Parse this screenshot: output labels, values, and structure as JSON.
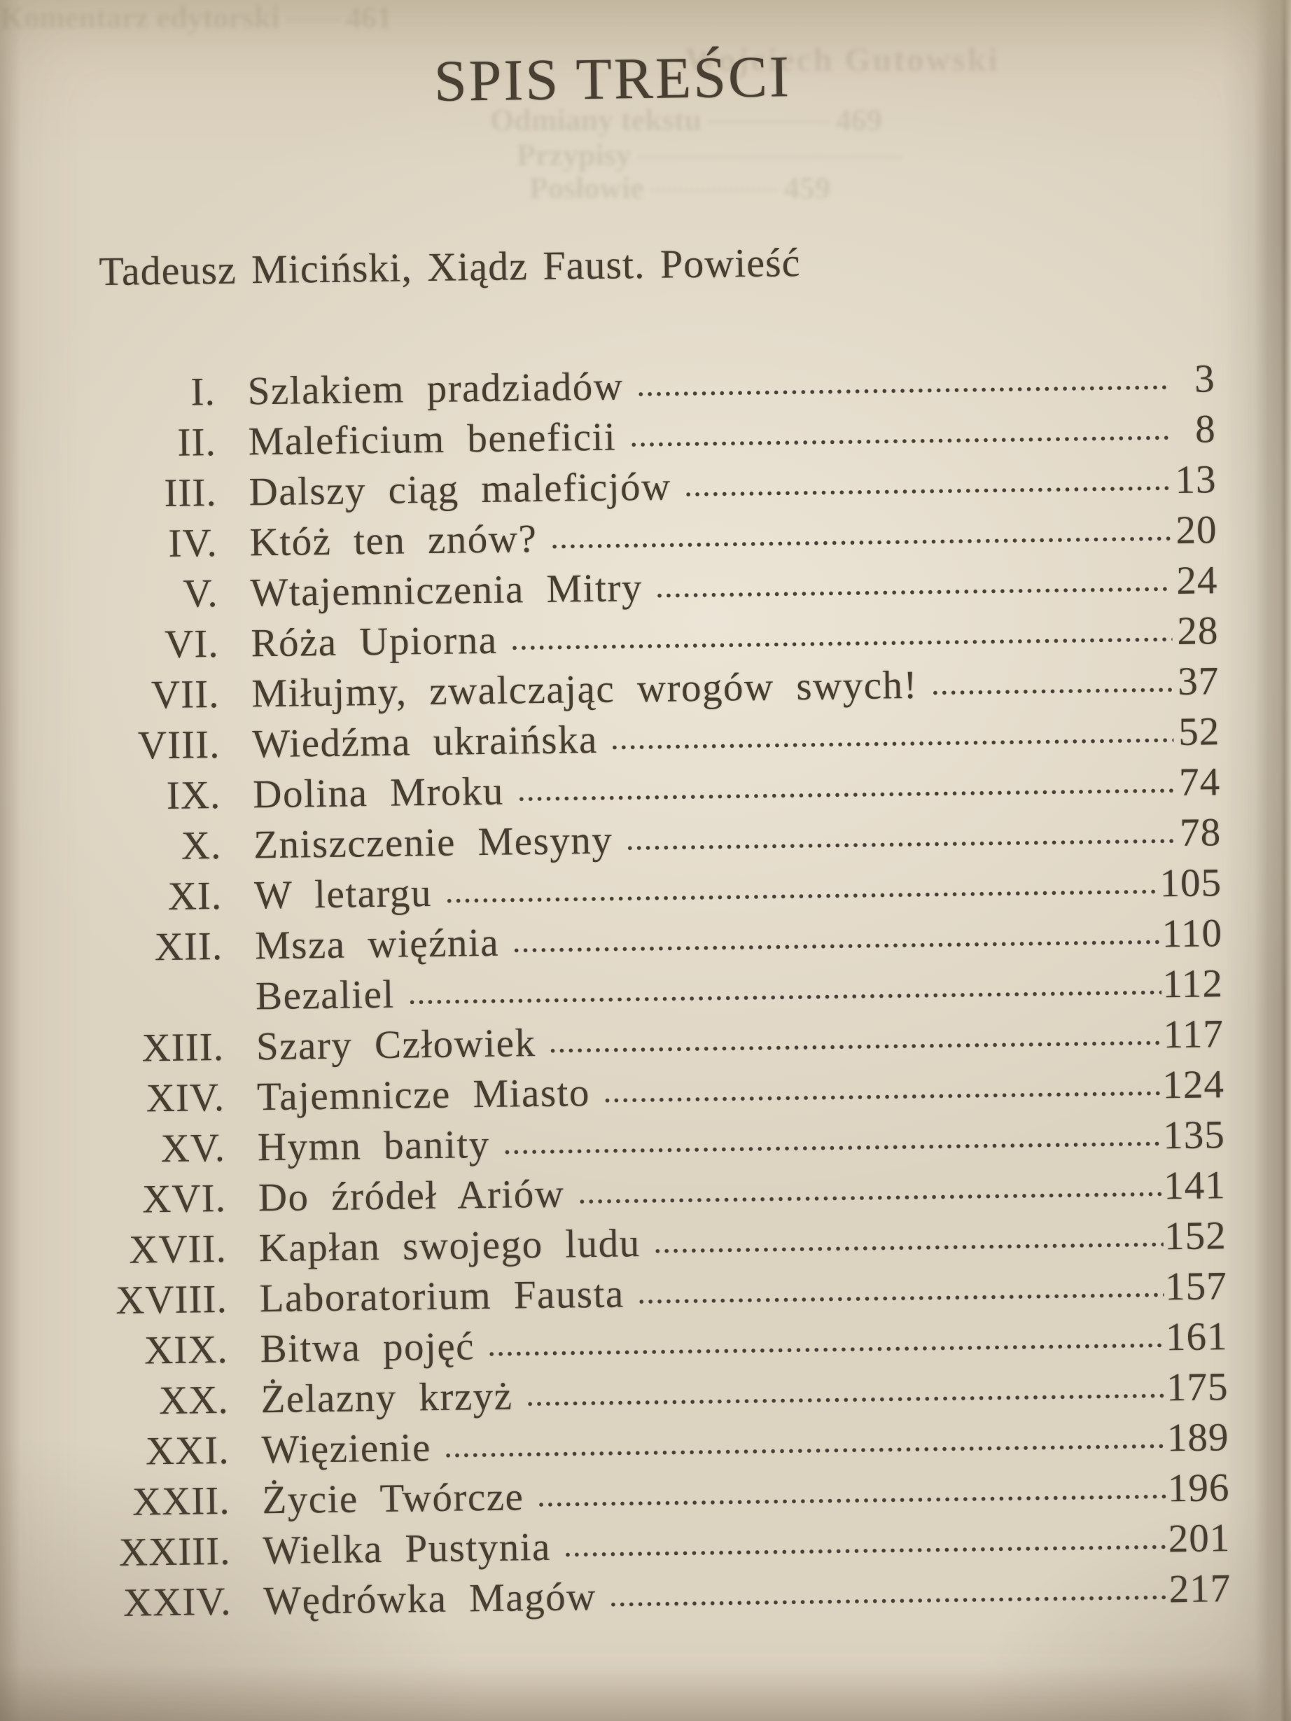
{
  "page": {
    "title": "SPIS TREŚCI",
    "subtitle": "Tadeusz Miciński, Xiądz Faust. Powieść",
    "toc": [
      {
        "numeral": "I.",
        "title": "Szlakiem pradziadów",
        "page": "3"
      },
      {
        "numeral": "II.",
        "title": "Maleficium beneficii",
        "page": "8"
      },
      {
        "numeral": "III.",
        "title": "Dalszy ciąg maleficjów",
        "page": "13"
      },
      {
        "numeral": "IV.",
        "title": "Któż ten znów?",
        "page": "20"
      },
      {
        "numeral": "V.",
        "title": "Wtajemniczenia Mitry",
        "page": "24"
      },
      {
        "numeral": "VI.",
        "title": "Róża Upiorna",
        "page": "28"
      },
      {
        "numeral": "VII.",
        "title": "Miłujmy, zwalczając wrogów swych!",
        "page": "37"
      },
      {
        "numeral": "VIII.",
        "title": "Wiedźma ukraińska",
        "page": "52"
      },
      {
        "numeral": "IX.",
        "title": "Dolina Mroku",
        "page": "74"
      },
      {
        "numeral": "X.",
        "title": "Zniszczenie Mesyny",
        "page": "78"
      },
      {
        "numeral": "XI.",
        "title": "W letargu",
        "page": "105"
      },
      {
        "numeral": "XII.",
        "title": "Msza więźnia",
        "page": "110"
      },
      {
        "numeral": "",
        "title": "Bezaliel",
        "page": "112"
      },
      {
        "numeral": "XIII.",
        "title": "Szary Człowiek",
        "page": "117"
      },
      {
        "numeral": "XIV.",
        "title": "Tajemnicze Miasto",
        "page": "124"
      },
      {
        "numeral": "XV.",
        "title": "Hymn banity",
        "page": "135"
      },
      {
        "numeral": "XVI.",
        "title": "Do źródeł Ariów",
        "page": "141"
      },
      {
        "numeral": "XVII.",
        "title": "Kapłan swojego ludu",
        "page": "152"
      },
      {
        "numeral": "XVIII.",
        "title": "Laboratorium Fausta",
        "page": "157"
      },
      {
        "numeral": "XIX.",
        "title": "Bitwa pojęć",
        "page": "161"
      },
      {
        "numeral": "XX.",
        "title": "Żelazny krzyż",
        "page": "175"
      },
      {
        "numeral": "XXI.",
        "title": "Więzienie",
        "page": "189"
      },
      {
        "numeral": "XXII.",
        "title": "Życie Twórcze",
        "page": "196"
      },
      {
        "numeral": "XXIII.",
        "title": "Wielka Pustynia",
        "page": "201"
      },
      {
        "numeral": "XXIV.",
        "title": "Wędrówka Magów",
        "page": "217"
      }
    ],
    "bleed_through": {
      "author": "Wojciech Gutowski",
      "lines": [
        {
          "label": "Komentarz edytorski",
          "page": "461"
        },
        {
          "label": "Odmiany tekstu",
          "page": "469"
        },
        {
          "label": "Przypisy",
          "page": ""
        },
        {
          "label": "Posłowie",
          "page": "459"
        }
      ]
    },
    "colors": {
      "paper": "#ddd3c1",
      "ink": "#473d31",
      "page_edge": "#998e7b"
    }
  }
}
